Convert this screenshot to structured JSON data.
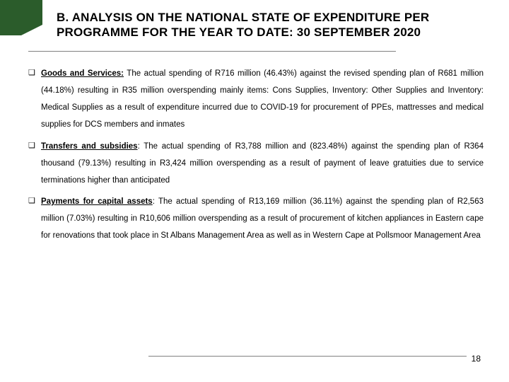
{
  "colors": {
    "corner": "#2b5c2b",
    "rule": "#808080",
    "text": "#000000",
    "bg": "#ffffff"
  },
  "title": {
    "line1": "B. ANALYSIS ON THE NATIONAL STATE OF EXPENDITURE PER",
    "line2": "PROGRAMME FOR THE YEAR TO DATE: 30 SEPTEMBER 2020"
  },
  "bullets": [
    {
      "label": "Goods and Services:",
      "text": " The actual spending of R716 million (46.43%) against the revised spending plan of R681 million (44.18%) resulting in R35 million overspending mainly items: Cons Supplies, Inventory: Other Supplies and Inventory: Medical Supplies as a result of expenditure incurred due to COVID-19 for procurement of PPEs, mattresses and medical supplies for DCS members and inmates"
    },
    {
      "label": "Transfers and subsidies",
      "text": ": The actual spending of R3,788 million and (823.48%) against the spending plan of R364 thousand (79.13%) resulting in R3,424 million overspending as a result of payment of leave gratuities due to service terminations higher than anticipated"
    },
    {
      "label": "Payments for capital assets",
      "text": ": The actual spending of R13,169 million (36.11%) against the spending  plan of R2,563 million (7.03%) resulting in R10,606 million overspending as a result of procurement of kitchen appliances in Eastern cape for renovations that took place in St Albans Management Area as well as in Western Cape at Pollsmoor Management Area"
    }
  ],
  "page_number": "18"
}
